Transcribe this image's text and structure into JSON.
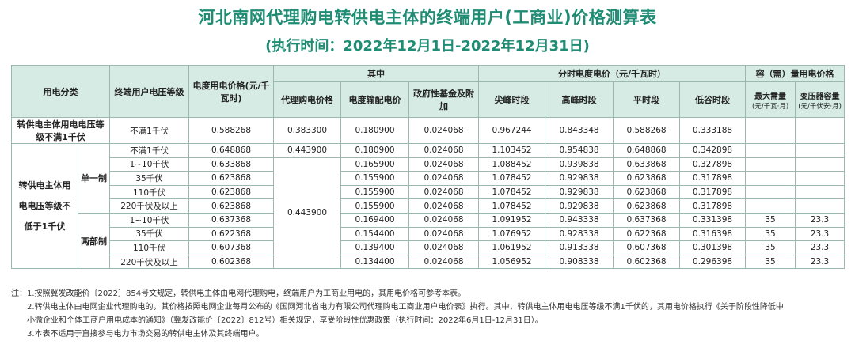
{
  "title": "河北南网代理购电转供电主体的终端用户(工商业)价格测算表",
  "subtitle": "(执行时间：2022年12月1日-2022年12月31日)",
  "header": {
    "category": "用电分类",
    "voltage": "终端用户电压等级",
    "price": "电度用电价格(元/千瓦时)",
    "among": "其中",
    "agent": "代理购电价格",
    "transmission": "电度输配电价",
    "fund": "政府性基金及附加",
    "tou": "分时电度电价（元/千瓦时）",
    "peak_sharp": "尖峰时段",
    "peak": "高峰时段",
    "flat": "平时段",
    "valley": "低谷时段",
    "capacity": "容（需）量用电价格",
    "max_demand": "最大需量",
    "max_demand_unit": "(元/千瓦·月)",
    "transformer": "变压器容量",
    "transformer_unit": "(元/千伏安·月)"
  },
  "first_group": {
    "label": "转供电主体用电电压等级不满1千伏",
    "row": {
      "voltage": "不满1千伏",
      "price": "0.588268",
      "agent": "0.383300",
      "trans": "0.180900",
      "fund": "0.024068",
      "s": "0.967244",
      "p": "0.843348",
      "f": "0.588268",
      "v": "0.333188",
      "md": "",
      "tc": ""
    }
  },
  "second_group": {
    "label": "转供电主体用电电压等级不低于1千伏",
    "single": "单一制",
    "dual": "两部制",
    "agent_first": "0.443900",
    "agent_rest": "0.443900",
    "rows": [
      {
        "voltage": "不满1千伏",
        "price": "0.648868",
        "trans": "0.180900",
        "fund": "0.024068",
        "s": "1.103452",
        "p": "0.954838",
        "f": "0.648868",
        "v": "0.342898",
        "md": "",
        "tc": ""
      },
      {
        "voltage": "1~10千伏",
        "price": "0.633868",
        "trans": "0.165900",
        "fund": "0.024068",
        "s": "1.088452",
        "p": "0.939838",
        "f": "0.633868",
        "v": "0.327898",
        "md": "",
        "tc": ""
      },
      {
        "voltage": "35千伏",
        "price": "0.623868",
        "trans": "0.155900",
        "fund": "0.024068",
        "s": "1.078452",
        "p": "0.929838",
        "f": "0.623868",
        "v": "0.317898",
        "md": "",
        "tc": ""
      },
      {
        "voltage": "110千伏",
        "price": "0.623868",
        "trans": "0.155900",
        "fund": "0.024068",
        "s": "1.078452",
        "p": "0.929838",
        "f": "0.623868",
        "v": "0.317898",
        "md": "",
        "tc": ""
      },
      {
        "voltage": "220千伏及以上",
        "price": "0.623868",
        "trans": "0.155900",
        "fund": "0.024068",
        "s": "1.078452",
        "p": "0.929838",
        "f": "0.623868",
        "v": "0.317898",
        "md": "",
        "tc": ""
      },
      {
        "voltage": "1~10千伏",
        "price": "0.637368",
        "trans": "0.169400",
        "fund": "0.024068",
        "s": "1.091952",
        "p": "0.943338",
        "f": "0.637368",
        "v": "0.331398",
        "md": "35",
        "tc": "23.3"
      },
      {
        "voltage": "35千伏",
        "price": "0.622368",
        "trans": "0.154400",
        "fund": "0.024068",
        "s": "1.076952",
        "p": "0.928338",
        "f": "0.622368",
        "v": "0.316398",
        "md": "35",
        "tc": "23.3"
      },
      {
        "voltage": "110千伏",
        "price": "0.607368",
        "trans": "0.139400",
        "fund": "0.024068",
        "s": "1.061952",
        "p": "0.913338",
        "f": "0.607368",
        "v": "0.301398",
        "md": "35",
        "tc": "23.3"
      },
      {
        "voltage": "220千伏及以上",
        "price": "0.602368",
        "trans": "0.134400",
        "fund": "0.024068",
        "s": "1.056952",
        "p": "0.908338",
        "f": "0.602368",
        "v": "0.296398",
        "md": "35",
        "tc": "23.3"
      }
    ]
  },
  "notes": [
    "注：1.按照冀发改能价〔2022〕854号文规定，转供电主体由电网代理购电，终端用户为工商业用电的，其用电价格可参考本表。",
    "2.转供电主体由电网企业代理购电的，其价格按照电网企业每月公布的《国网河北省电力有限公司代理购电工商业用户电价表》执行。其中，转供电主体用电电压等级不满1千伏的，其用电价格执行《关于阶段性降低中",
    "小微企业和个体工商户用电成本的通知》（冀发改能价〔2022〕812号）相关规定，享受阶段性优惠政策（执行时间：2022年6月1日-12月31日）。",
    "3.本表不适用于直接参与电力市场交易的转供电主体及其终端用户。"
  ]
}
